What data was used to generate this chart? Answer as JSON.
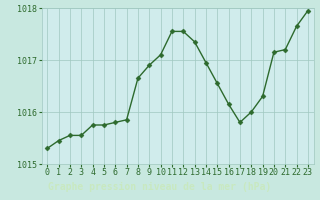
{
  "x": [
    0,
    1,
    2,
    3,
    4,
    5,
    6,
    7,
    8,
    9,
    10,
    11,
    12,
    13,
    14,
    15,
    16,
    17,
    18,
    19,
    20,
    21,
    22,
    23
  ],
  "y": [
    1015.3,
    1015.45,
    1015.55,
    1015.55,
    1015.75,
    1015.75,
    1015.8,
    1015.85,
    1016.65,
    1016.9,
    1017.1,
    1017.55,
    1017.55,
    1017.35,
    1016.95,
    1016.55,
    1016.15,
    1015.8,
    1016.0,
    1016.3,
    1017.15,
    1017.2,
    1017.65,
    1017.95
  ],
  "line_color": "#2d6a2d",
  "marker_color": "#2d6a2d",
  "bg_color": "#c8e8e0",
  "grid_color": "#a0c8c0",
  "plot_bg": "#d0ecec",
  "footer_bg": "#3a7a4a",
  "xlabel": "Graphe pression niveau de la mer (hPa)",
  "ylim": [
    1015.0,
    1018.0
  ],
  "yticks": [
    1015,
    1016,
    1017,
    1018
  ],
  "xticks": [
    0,
    1,
    2,
    3,
    4,
    5,
    6,
    7,
    8,
    9,
    10,
    11,
    12,
    13,
    14,
    15,
    16,
    17,
    18,
    19,
    20,
    21,
    22,
    23
  ],
  "xticklabels": [
    "0",
    "1",
    "2",
    "3",
    "4",
    "5",
    "6",
    "7",
    "8",
    "9",
    "10",
    "11",
    "12",
    "13",
    "14",
    "15",
    "16",
    "17",
    "18",
    "19",
    "20",
    "21",
    "22",
    "23"
  ],
  "label_color": "#2d6a2d",
  "tick_label_color": "#2d6a2d",
  "xlabel_color": "#c8e8c0",
  "xlabel_fontsize": 7,
  "tick_fontsize": 6,
  "linewidth": 1.0,
  "markersize": 2.5
}
